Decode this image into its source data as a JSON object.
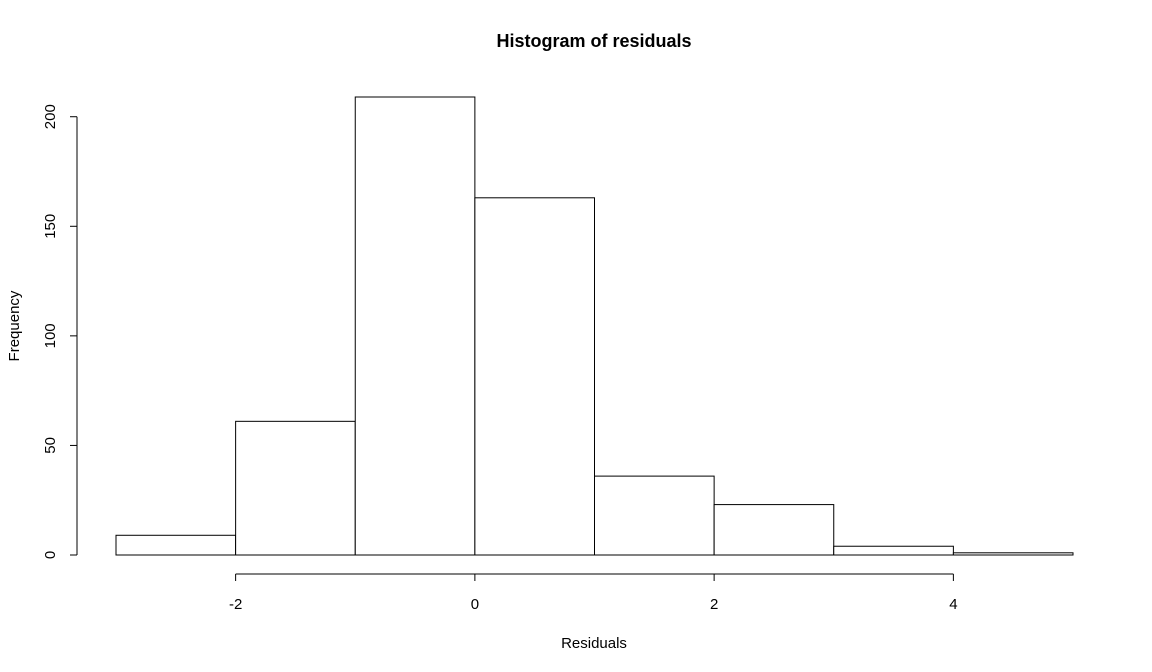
{
  "chart_data": {
    "type": "bar",
    "title": "Histogram of residuals",
    "xlabel": "Residuals",
    "ylabel": "Frequency",
    "bins": [
      {
        "start": -3,
        "end": -2,
        "count": 9
      },
      {
        "start": -2,
        "end": -1,
        "count": 61
      },
      {
        "start": -1,
        "end": 0,
        "count": 209
      },
      {
        "start": 0,
        "end": 1,
        "count": 163
      },
      {
        "start": 1,
        "end": 2,
        "count": 36
      },
      {
        "start": 2,
        "end": 3,
        "count": 23
      },
      {
        "start": 3,
        "end": 4,
        "count": 4
      },
      {
        "start": 4,
        "end": 5,
        "count": 1
      }
    ],
    "xlim": [
      -3,
      5
    ],
    "ylim": [
      0,
      209
    ],
    "x_ticks": [
      -2,
      0,
      2,
      4
    ],
    "x_tick_labels": [
      "-2",
      "0",
      "2",
      "4"
    ],
    "y_ticks": [
      0,
      50,
      100,
      150,
      200
    ],
    "y_tick_labels": [
      "0",
      "50",
      "100",
      "150",
      "200"
    ],
    "grid": false,
    "bar_fill": "#ffffff",
    "bar_stroke": "#000000"
  }
}
